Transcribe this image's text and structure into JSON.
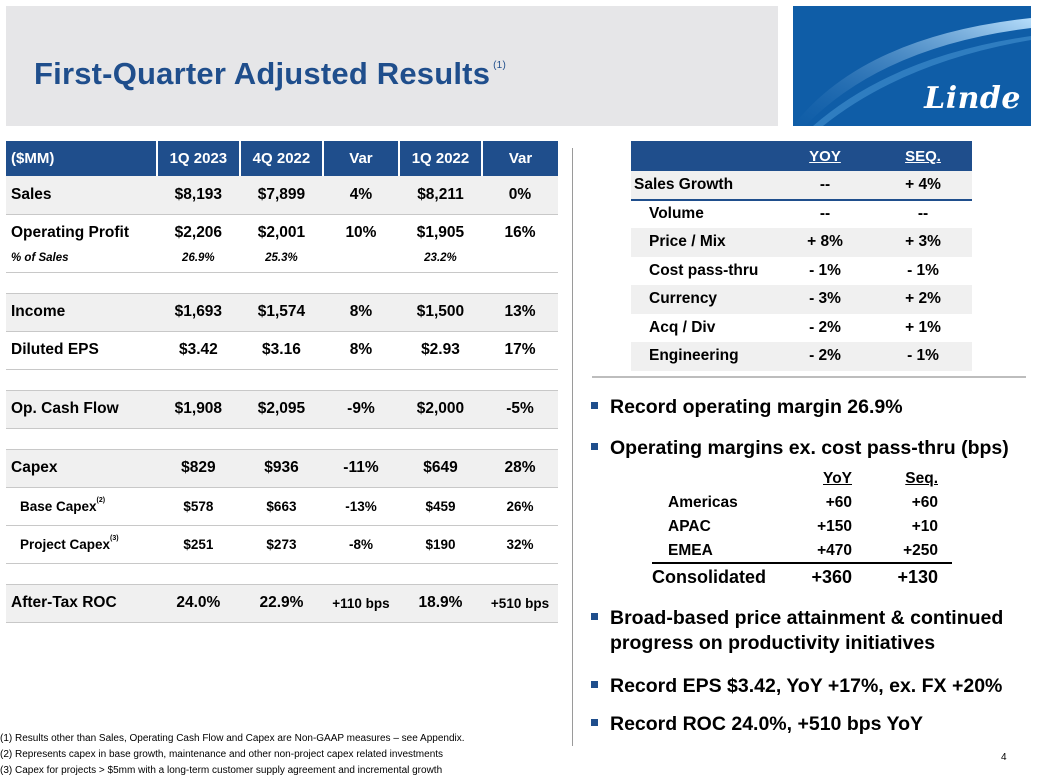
{
  "title": {
    "text": "First-Quarter Adjusted Results",
    "sup": "(1)"
  },
  "logo": {
    "text": "Linde",
    "icon": "linde-swoosh-icon"
  },
  "main_table": {
    "headers": [
      "($MM)",
      "1Q 2023",
      "4Q 2022",
      "Var",
      "1Q 2022",
      "Var"
    ],
    "rows": {
      "sales": [
        "Sales",
        "$8,193",
        "$7,899",
        "4%",
        "$8,211",
        "0%"
      ],
      "op_profit": [
        "Operating Profit",
        "$2,206",
        "$2,001",
        "10%",
        "$1,905",
        "16%"
      ],
      "pct_sales": [
        "% of Sales",
        "26.9%",
        "25.3%",
        "",
        "23.2%",
        ""
      ],
      "income": [
        "Income",
        "$1,693",
        "$1,574",
        "8%",
        "$1,500",
        "13%"
      ],
      "eps": [
        "Diluted EPS",
        "$3.42",
        "$3.16",
        "8%",
        "$2.93",
        "17%"
      ],
      "cash_flow": [
        "Op. Cash Flow",
        "$1,908",
        "$2,095",
        "-9%",
        "$2,000",
        "-5%"
      ],
      "capex": [
        "Capex",
        "$829",
        "$936",
        "-11%",
        "$649",
        "28%"
      ],
      "base_capex": [
        "Base Capex",
        "$578",
        "$663",
        "-13%",
        "$459",
        "26%"
      ],
      "project_capex": [
        "Project Capex",
        "$251",
        "$273",
        "-8%",
        "$190",
        "32%"
      ],
      "roc": [
        "After-Tax ROC",
        "24.0%",
        "22.9%",
        "+110 bps",
        "18.9%",
        "+510 bps"
      ]
    },
    "base_capex_sup": "(2)",
    "project_capex_sup": "(3)"
  },
  "growth_table": {
    "headers": [
      "",
      "YOY",
      "SEQ."
    ],
    "rows": [
      [
        "Sales Growth",
        "--",
        "+ 4%"
      ],
      [
        "Volume",
        "--",
        "--"
      ],
      [
        "Price / Mix",
        "+ 8%",
        "+ 3%"
      ],
      [
        "Cost pass-thru",
        "- 1%",
        "- 1%"
      ],
      [
        "Currency",
        "- 3%",
        "+ 2%"
      ],
      [
        "Acq / Div",
        "- 2%",
        "+ 1%"
      ],
      [
        "Engineering",
        "- 2%",
        "- 1%"
      ]
    ]
  },
  "bullets": [
    "Record operating margin 26.9%",
    "Operating margins ex. cost pass-thru (bps)",
    "Broad-based price attainment & continued",
    "progress on productivity initiatives",
    "Record EPS $3.42, YoY +17%, ex. FX +20%",
    "Record ROC 24.0%, +510 bps YoY"
  ],
  "margins_table": {
    "headers": [
      "",
      "YoY",
      "Seq."
    ],
    "rows": [
      [
        "Americas",
        "+60",
        "+60"
      ],
      [
        "APAC",
        "+150",
        "+10"
      ],
      [
        "EMEA",
        "+470",
        "+250"
      ]
    ],
    "total": [
      "Consolidated",
      "+360",
      "+130"
    ]
  },
  "footnotes": [
    "(1) Results other than Sales, Operating Cash Flow and Capex are Non-GAAP measures – see Appendix.",
    "(2) Represents capex in base growth, maintenance and other non-project capex related investments",
    "(3) Capex for projects > $5mm with a long-term customer supply agreement and incremental growth"
  ],
  "page_number": "4",
  "colors": {
    "brand_blue": "#1f4e8c",
    "logo_blue": "#0f5da7",
    "banner_gray": "#e6e6e8"
  }
}
